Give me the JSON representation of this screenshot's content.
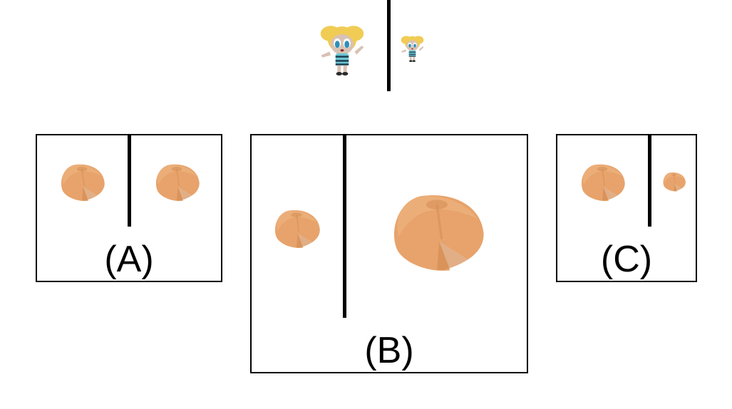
{
  "colors": {
    "background": "#ffffff",
    "border": "#000000",
    "cookie_fill": "#e7a36b",
    "cookie_shadow": "#d48c52",
    "hair": "#f0cc55",
    "skin": "#d9c2b4",
    "dress": "#6cc6d3"
  },
  "reference": {
    "left_image": "cartoon-girl-large",
    "right_image": "cartoon-girl-small"
  },
  "options": [
    {
      "label": "(A)",
      "left_image": "fortune-cookie",
      "right_image": "fortune-cookie"
    },
    {
      "label": "(B)",
      "left_image": "fortune-cookie",
      "right_image": "fortune-cookie"
    },
    {
      "label": "(C)",
      "left_image": "fortune-cookie",
      "right_image": "fortune-cookie"
    }
  ]
}
